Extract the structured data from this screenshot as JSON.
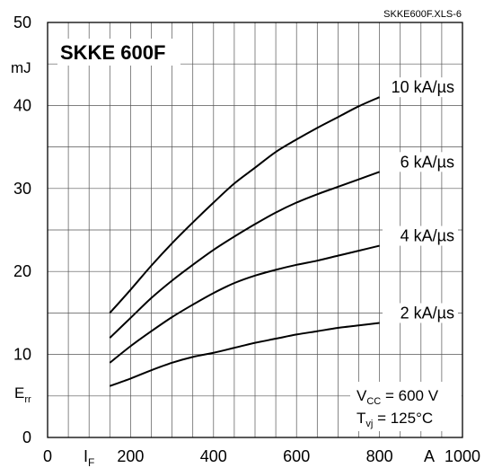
{
  "chart_data": {
    "type": "line",
    "file_label": "SKKE600F.XLS-6",
    "title": "SKKE 600F",
    "y_unit": "mJ",
    "y_symbol": {
      "main": "E",
      "sub": "rr"
    },
    "x_symbol": {
      "main": "I",
      "sub": "F"
    },
    "x_unit": "A",
    "xlim": [
      0,
      1000
    ],
    "ylim": [
      0,
      50
    ],
    "x_ticks": [
      "0",
      "200",
      "400",
      "600",
      "800",
      "1000"
    ],
    "y_ticks": [
      "0",
      "10",
      "20",
      "30",
      "40",
      "50"
    ],
    "grid": true,
    "conditions": {
      "line1": {
        "main": "V",
        "sub": "CC",
        "rest": " = 600 V"
      },
      "line2": {
        "main": "T",
        "sub": "vj",
        "rest": " = 125°C"
      }
    },
    "series": [
      {
        "name": "10 kA/µs",
        "x": [
          150,
          200,
          250,
          300,
          350,
          400,
          450,
          500,
          550,
          600,
          650,
          700,
          750,
          800
        ],
        "y": [
          15,
          17.8,
          20.7,
          23.4,
          25.9,
          28.3,
          30.6,
          32.5,
          34.4,
          35.9,
          37.3,
          38.6,
          39.9,
          41
        ]
      },
      {
        "name": "6 kA/µs",
        "x": [
          150,
          200,
          250,
          300,
          350,
          400,
          450,
          500,
          550,
          600,
          650,
          700,
          750,
          800
        ],
        "y": [
          12,
          14.4,
          16.8,
          18.9,
          20.8,
          22.6,
          24.2,
          25.7,
          27.1,
          28.3,
          29.3,
          30.2,
          31.1,
          32
        ]
      },
      {
        "name": "4 kA/µs",
        "x": [
          150,
          200,
          250,
          300,
          350,
          400,
          450,
          500,
          550,
          600,
          650,
          700,
          750,
          800
        ],
        "y": [
          9,
          11,
          12.8,
          14.5,
          16,
          17.4,
          18.6,
          19.5,
          20.2,
          20.8,
          21.3,
          21.9,
          22.5,
          23.1
        ]
      },
      {
        "name": "2 kA/µs",
        "x": [
          150,
          200,
          250,
          300,
          350,
          400,
          450,
          500,
          550,
          600,
          650,
          700,
          750,
          800
        ],
        "y": [
          6.2,
          7.1,
          8.1,
          9,
          9.7,
          10.2,
          10.8,
          11.4,
          11.9,
          12.4,
          12.8,
          13.2,
          13.5,
          13.8
        ]
      }
    ]
  }
}
